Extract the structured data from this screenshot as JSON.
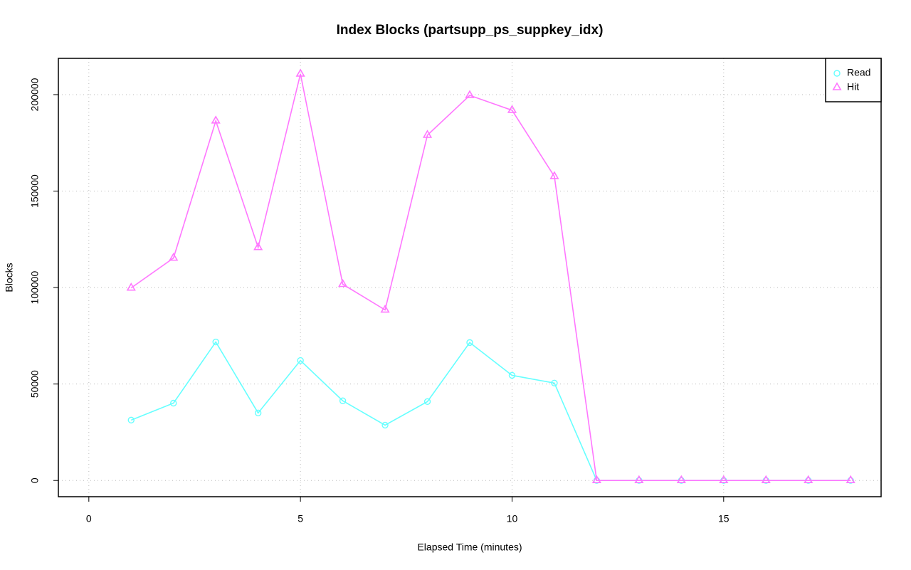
{
  "chart_data": {
    "type": "line",
    "title": "Index Blocks (partsupp_ps_suppkey_idx)",
    "x_label": "Elapsed Time (minutes)",
    "y_label": "Blocks",
    "x": [
      1,
      2,
      3,
      4,
      5,
      6,
      7,
      8,
      9,
      10,
      11,
      12,
      13,
      14,
      15,
      16,
      17,
      18
    ],
    "series": [
      {
        "name": "Read",
        "color": "#66ffff",
        "marker": "circle",
        "values": [
          31300,
          40100,
          71800,
          35000,
          62200,
          41300,
          28700,
          40900,
          71500,
          54500,
          50500,
          0,
          0,
          0,
          0,
          0,
          0,
          0
        ]
      },
      {
        "name": "Hit",
        "color": "#ff77ff",
        "marker": "triangle",
        "values": [
          99800,
          115300,
          186400,
          120800,
          210700,
          101700,
          88400,
          179000,
          199600,
          191900,
          157600,
          0,
          0,
          0,
          0,
          0,
          0,
          0
        ]
      }
    ],
    "xlim": [
      -0.72,
      18.72
    ],
    "xticks": [
      0,
      5,
      10,
      15
    ],
    "ylim": [
      -8400,
      218800
    ],
    "yticks": [
      0,
      50000,
      100000,
      150000,
      200000
    ],
    "grid": true,
    "legend": "top-right"
  }
}
